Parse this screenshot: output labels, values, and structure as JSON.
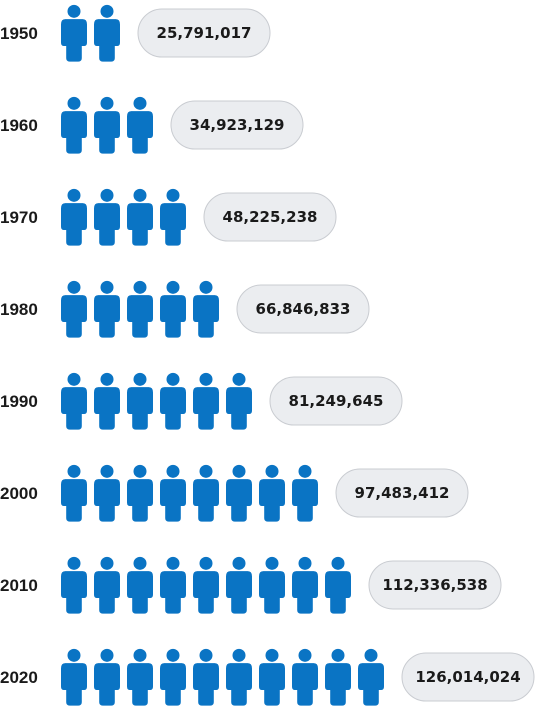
{
  "chart_data": {
    "type": "pictogram",
    "icon": "person-icon",
    "color": "#0a74c4",
    "pill_color": "#ebedf0",
    "rows": [
      {
        "year": "1950",
        "value": 25791017,
        "label": "25,791,017",
        "icons": 2
      },
      {
        "year": "1960",
        "value": 34923129,
        "label": "34,923,129",
        "icons": 3
      },
      {
        "year": "1970",
        "value": 48225238,
        "label": "48,225,238",
        "icons": 4
      },
      {
        "year": "1980",
        "value": 66846833,
        "label": "66,846,833",
        "icons": 5
      },
      {
        "year": "1990",
        "value": 81249645,
        "label": "81,249,645",
        "icons": 6
      },
      {
        "year": "2000",
        "value": 97483412,
        "label": "97,483,412",
        "icons": 8
      },
      {
        "year": "2010",
        "value": 112336538,
        "label": "112,336,538",
        "icons": 9
      },
      {
        "year": "2020",
        "value": 126014024,
        "label": "126,014,024",
        "icons": 10
      }
    ]
  }
}
